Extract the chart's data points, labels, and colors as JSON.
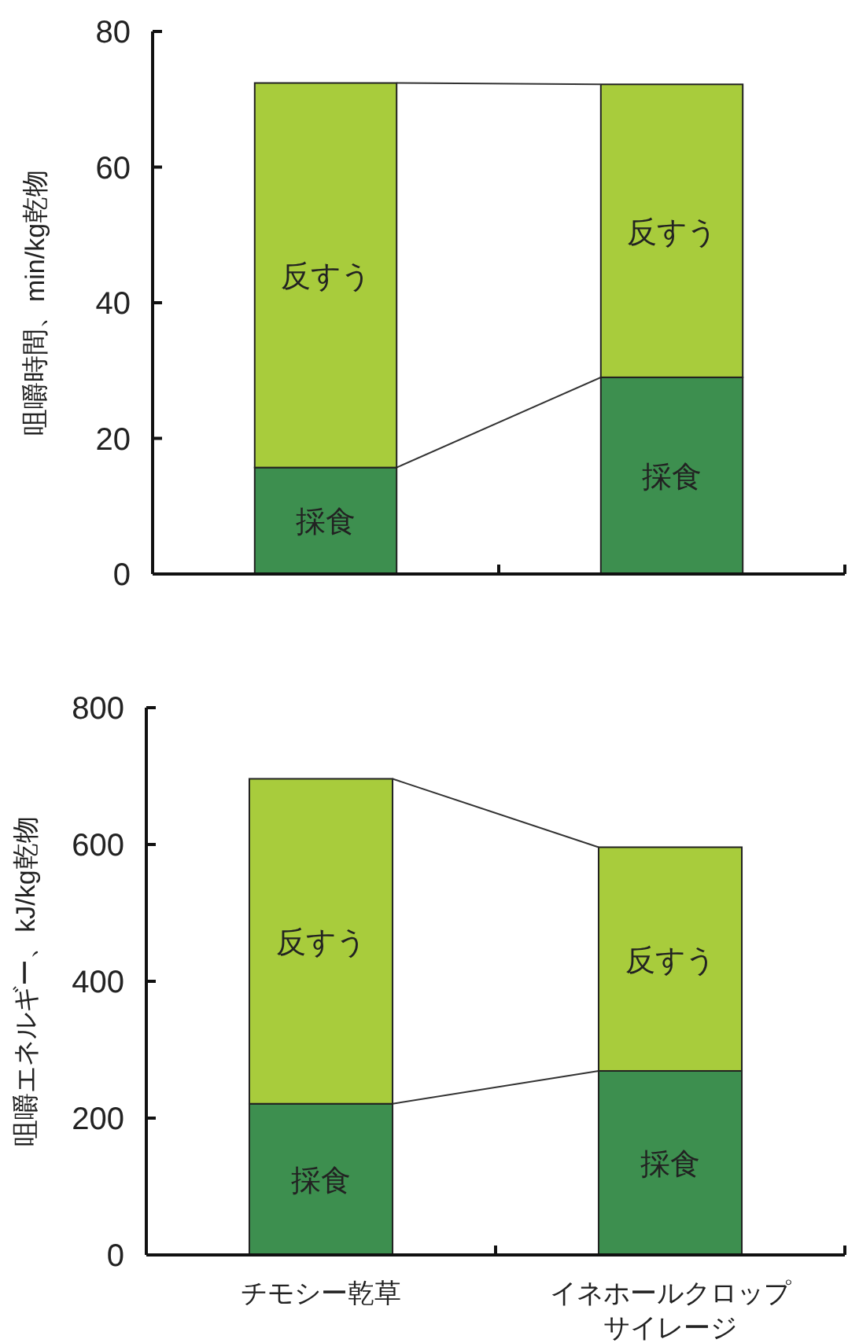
{
  "chart_data": [
    {
      "type": "bar",
      "stacked": true,
      "categories": [
        null,
        null
      ],
      "ylabel": "咀嚼時間、min/kg乾物",
      "ylim": [
        0,
        80
      ],
      "yticks": [
        0,
        20,
        40,
        60,
        80
      ],
      "series": [
        {
          "name": "採食",
          "color": "#3d8f4f",
          "values": [
            15.7,
            29.0
          ]
        },
        {
          "name": "反すう",
          "color": "#a8cc3c",
          "values": [
            56.7,
            43.2
          ]
        }
      ]
    },
    {
      "type": "bar",
      "stacked": true,
      "categories": [
        "チモシー乾草",
        "イネホールクロップサイレージ"
      ],
      "ylabel": "咀嚼エネルギー、kJ/kg乾物",
      "ylim": [
        0,
        800
      ],
      "yticks": [
        0,
        200,
        400,
        600,
        800
      ],
      "series": [
        {
          "name": "採食",
          "color": "#3d8f4f",
          "values": [
            221,
            269
          ]
        },
        {
          "name": "反すう",
          "color": "#a8cc3c",
          "values": [
            475,
            327
          ]
        }
      ]
    }
  ]
}
